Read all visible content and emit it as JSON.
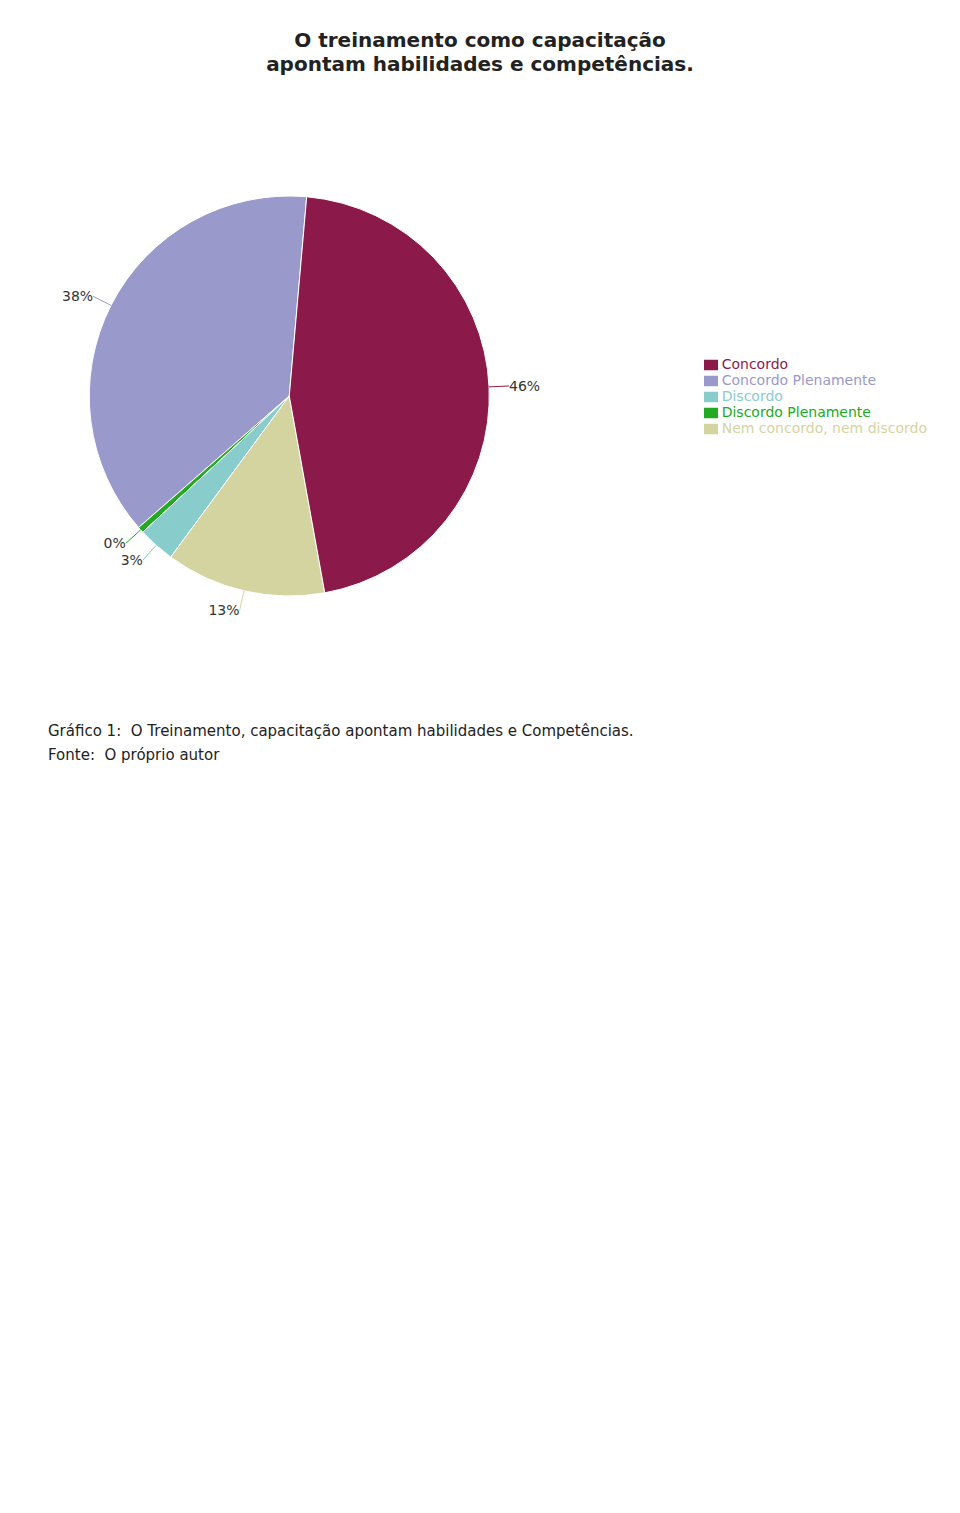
{
  "chart_data": {
    "type": "pie",
    "title": "O treinamento como capacitação\napontam habilidades e competências.",
    "categories": [
      "Concordo Plenamente",
      "Discordo Plenamente",
      "Discordo",
      "Nem concordo, nem discordo",
      "Concordo"
    ],
    "values": [
      38,
      0.5,
      3,
      13,
      46
    ],
    "value_labels": [
      "38%",
      "0%",
      "3%",
      "13%",
      "46%"
    ],
    "colors": [
      "#9999cc",
      "#22aa22",
      "#88cccc",
      "#d4d4a0",
      "#8b1a4a"
    ],
    "data_labels": true,
    "legend": "right",
    "annotations": [
      "Gráfico 1:  O Treinamento, capacitação apontam habilidades e Competências.",
      "Fonte:  O próprio autor"
    ]
  }
}
